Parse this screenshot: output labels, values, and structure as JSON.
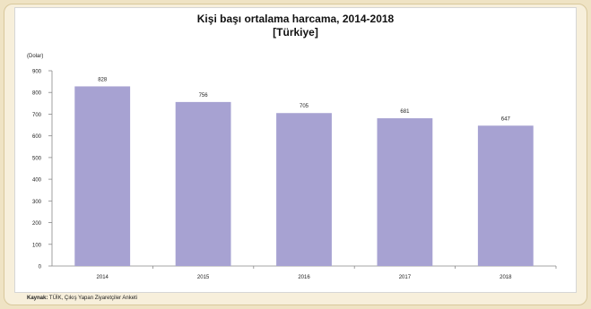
{
  "chart_data": {
    "type": "bar",
    "title": "Kişi başı ortalama harcama, 2014-2018",
    "subtitle": "[Türkiye]",
    "unit_label": "(Dolar)",
    "categories": [
      "2014",
      "2015",
      "2016",
      "2017",
      "2018"
    ],
    "values": [
      828,
      756,
      705,
      681,
      647
    ],
    "value_labels": [
      "828",
      "756",
      "705",
      "681",
      "647"
    ],
    "ylim": [
      0,
      900
    ],
    "yticks": [
      0,
      100,
      200,
      300,
      400,
      500,
      600,
      700,
      800,
      900
    ],
    "xlabel": "",
    "ylabel": "",
    "grid": false,
    "legend": "none",
    "bar_color": "#a7a2d2"
  },
  "source": {
    "label": "Kaynak:",
    "text": "TÜİK, Çıkış Yapan Ziyaretçiler Anketi"
  }
}
